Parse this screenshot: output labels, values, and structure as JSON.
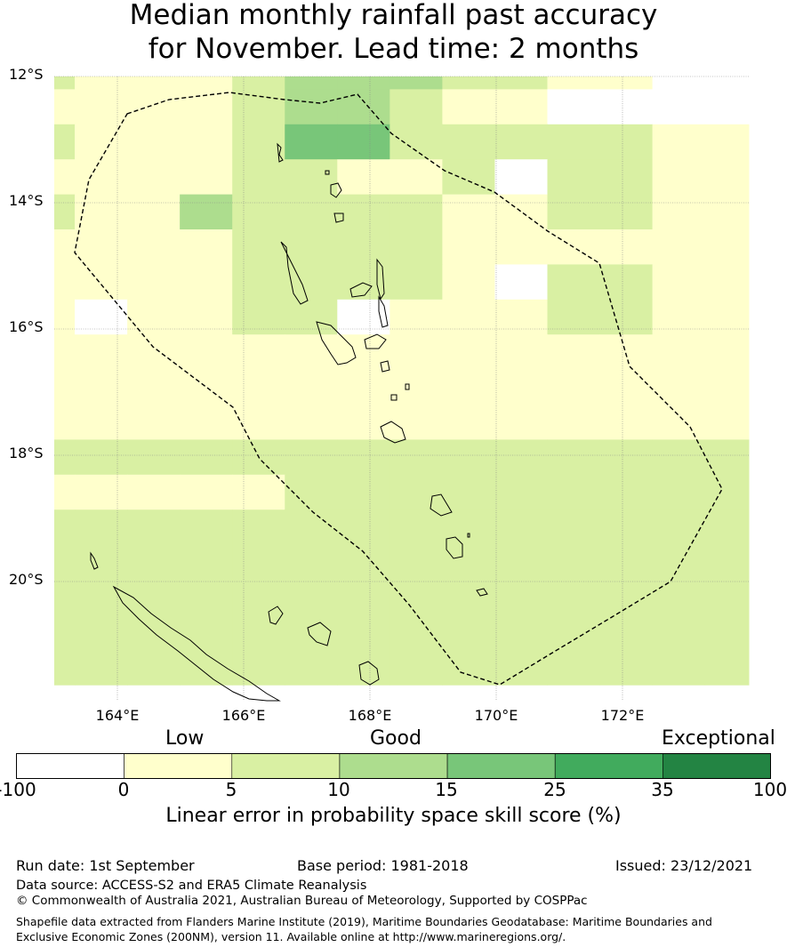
{
  "title": {
    "line1": "Median monthly rainfall past accuracy",
    "line2": "for November. Lead time: 2 months"
  },
  "map": {
    "lat_labels": [
      "12°S",
      "14°S",
      "16°S",
      "18°S",
      "20°S"
    ],
    "lon_labels": [
      "164°E",
      "166°E",
      "168°E",
      "170°E",
      "172°E"
    ],
    "extent": {
      "lon_min": 163.0,
      "lon_max": 174.0,
      "lat_max": -12.0,
      "lat_min": -21.9
    },
    "grid_resolution_deg": 0.83,
    "boundary_line": "dashed EEZ boundary",
    "colors": [
      "#ffffff",
      "#ffffcc",
      "#d9f0a3",
      "#addd8e",
      "#78c679",
      "#41ab5d",
      "#238443"
    ],
    "cell_classes": [
      "2111233322110000",
      "1111233211000000",
      "2111244222221111",
      "1111221120221111",
      "2113222211221111",
      "1111222211111111",
      "1111222210221111",
      "1011220111221111",
      "1111111111111111",
      "1111111111111111",
      "1111111111111111",
      "2222222222222222",
      "1111122222222222",
      "2222222222222222",
      "2222222222222222",
      "2222222222222222",
      "2222222222222222",
      "2222222222222222"
    ]
  },
  "colorbar": {
    "categories": [
      "Low",
      "Good",
      "Exceptional"
    ],
    "ticks": [
      "-100",
      "0",
      "5",
      "10",
      "15",
      "25",
      "35",
      "100"
    ],
    "colors": [
      "#ffffff",
      "#ffffcc",
      "#d9f0a3",
      "#addd8e",
      "#78c679",
      "#41ab5d",
      "#238443"
    ],
    "label": "Linear error in probability space skill score (%)"
  },
  "footer": {
    "run_date": "Run date: 1st September",
    "base_period": "Base period: 1981-2018",
    "issued": "Issued: 23/12/2021",
    "data_source": "Data source: ACCESS-S2 and ERA5 Climate Reanalysis",
    "copyright": "© Commonwealth of Australia 2021, Australian Bureau of Meteorology, Supported by COSPPac",
    "shapefile": "Shapefile data extracted from Flanders Marine Institute (2019), Maritime Boundaries Geodatabase: Maritime Boundaries and Exclusive Economic Zones (200NM), version 11. Available online at http://www.marineregions.org/."
  }
}
